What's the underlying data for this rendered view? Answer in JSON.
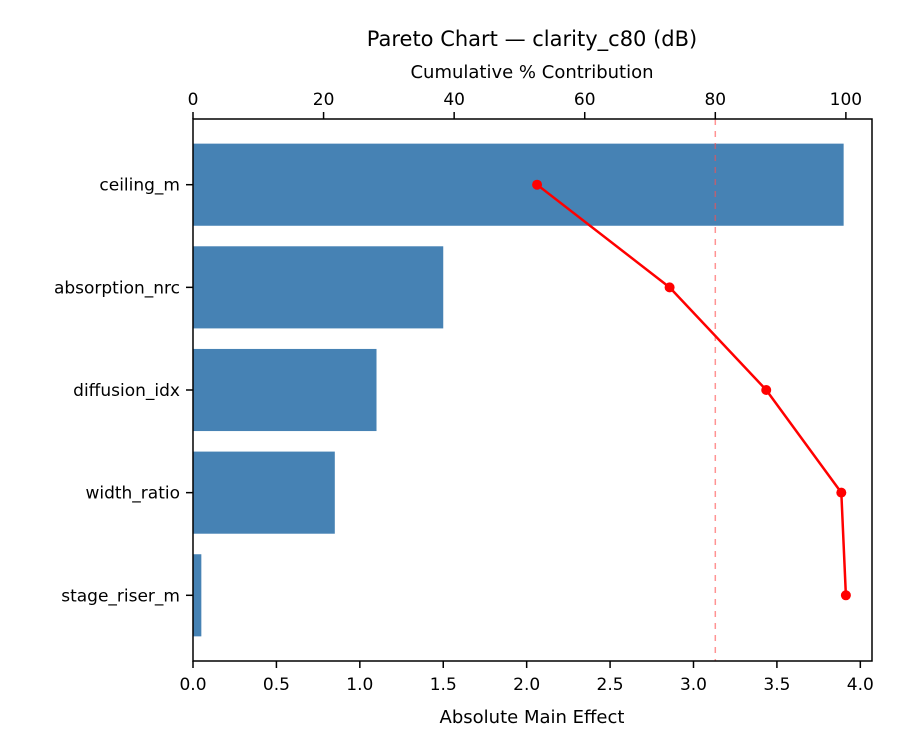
{
  "chart_data": {
    "type": "bar",
    "subtype": "pareto",
    "title": "Pareto Chart — clarity_c80 (dB)",
    "top_axis_label": "Cumulative % Contribution",
    "bottom_axis_label": "Absolute Main Effect",
    "categories": [
      "ceiling_m",
      "absorption_nrc",
      "diffusion_idx",
      "width_ratio",
      "stage_riser_m"
    ],
    "bar_values": [
      3.9,
      1.5,
      1.1,
      0.85,
      0.05
    ],
    "cumulative_pct": [
      52.7,
      73.0,
      87.8,
      99.3,
      100.0
    ],
    "threshold_pct": 80,
    "bottom_ticks": [
      0.0,
      0.5,
      1.0,
      1.5,
      2.0,
      2.5,
      3.0,
      3.5,
      4.0
    ],
    "top_ticks": [
      0,
      20,
      40,
      60,
      80,
      100
    ],
    "bottom_xlim": [
      0,
      4.07
    ],
    "top_xlim": [
      0,
      104
    ],
    "bar_color": "#4682b4",
    "line_color": "#ff0000",
    "threshold_color": "#ff4d4d",
    "grid": "off",
    "legend": "none",
    "orientation": "horizontal"
  }
}
